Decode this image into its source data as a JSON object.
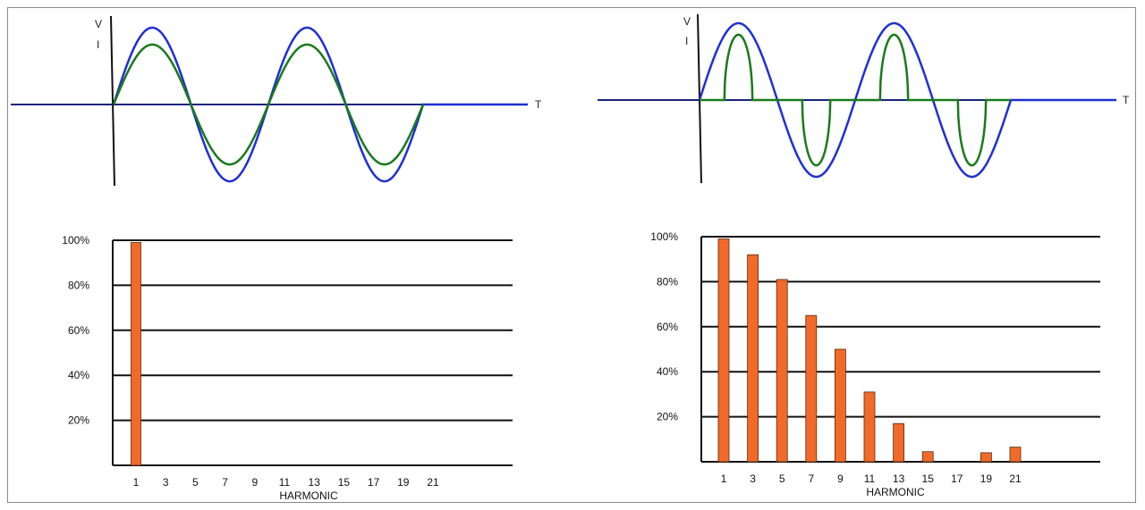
{
  "chart_data": [
    {
      "type": "line",
      "title": "",
      "series": [
        {
          "name": "V",
          "color": "#1f2fd6",
          "shape": "sine",
          "amplitude": 1.0,
          "cycles": 2
        },
        {
          "name": "I",
          "color": "#1a7a1a",
          "shape": "sine",
          "amplitude": 0.78,
          "cycles": 2
        }
      ],
      "xlabel": "T",
      "ylabel_entries": [
        "V",
        "I"
      ]
    },
    {
      "type": "line",
      "title": "",
      "series": [
        {
          "name": "V",
          "color": "#1f2fd6",
          "shape": "sine",
          "amplitude": 1.0,
          "cycles": 2
        },
        {
          "name": "I",
          "color": "#1a7a1a",
          "shape": "pulsed",
          "amplitude": 0.85,
          "cycles": 2
        }
      ],
      "xlabel": "T",
      "ylabel_entries": [
        "V",
        "I"
      ]
    },
    {
      "type": "bar",
      "categories": [
        "1",
        "3",
        "5",
        "7",
        "9",
        "11",
        "13",
        "15",
        "17",
        "19",
        "21"
      ],
      "values": [
        99,
        0,
        0,
        0,
        0,
        0,
        0,
        0,
        0,
        0,
        0
      ],
      "yticks": [
        "20%",
        "40%",
        "60%",
        "80%",
        "100%"
      ],
      "ytick_values": [
        20,
        40,
        60,
        80,
        100
      ],
      "xlabel": "HARMONIC",
      "ylim": [
        0,
        100
      ],
      "bar_color": "#f26a2a",
      "grid": true
    },
    {
      "type": "bar",
      "categories": [
        "1",
        "3",
        "5",
        "7",
        "9",
        "11",
        "13",
        "15",
        "17",
        "19",
        "21"
      ],
      "values": [
        99,
        92,
        81,
        65,
        50,
        31,
        17,
        4.5,
        0,
        4,
        6.5
      ],
      "yticks": [
        "20%",
        "40%",
        "60%",
        "80%",
        "100%"
      ],
      "ytick_values": [
        20,
        40,
        60,
        80,
        100
      ],
      "xlabel": "HARMONIC",
      "ylim": [
        0,
        100
      ],
      "bar_color": "#f26a2a",
      "grid": true
    }
  ]
}
